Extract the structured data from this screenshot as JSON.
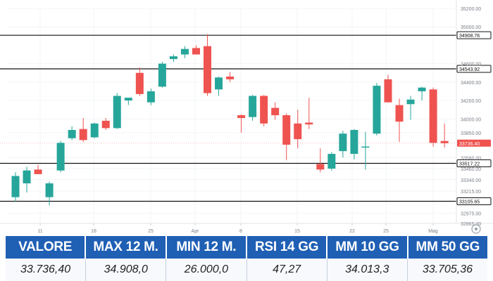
{
  "chart_data": {
    "type": "candlestick",
    "x_tick_labels": [
      "11",
      "18",
      "25",
      "Apr",
      "8",
      "15",
      "22",
      "25",
      "Mag"
    ],
    "y_tick_labels": [
      "35200.00",
      "35000.00",
      "34600.00",
      "34400.00",
      "34200.00",
      "34000.00",
      "33850.00",
      "33580.00",
      "33460.00",
      "33340.00",
      "33215.00",
      "32975.00",
      "32865.00"
    ],
    "ylim": [
      32865,
      35200
    ],
    "colors": {
      "up": "#26a69a",
      "down": "#ef5350",
      "price_tag": "#ef5350"
    },
    "horizontal_levels": [
      {
        "value": 34908.76,
        "label": "34908.76"
      },
      {
        "value": 34543.92,
        "label": "34543.92"
      },
      {
        "value": 33517.22,
        "label": "33517.22"
      },
      {
        "value": 33105.65,
        "label": "33105.65"
      }
    ],
    "last_price": {
      "value": 33736.4,
      "label": "33736.40"
    },
    "candles": [
      {
        "o": 33150,
        "h": 33420,
        "l": 33100,
        "c": 33380
      },
      {
        "o": 33300,
        "h": 33480,
        "l": 33200,
        "c": 33440
      },
      {
        "o": 33450,
        "h": 33500,
        "l": 33400,
        "c": 33400
      },
      {
        "o": 33150,
        "h": 33320,
        "l": 33060,
        "c": 33300
      },
      {
        "o": 33440,
        "h": 33760,
        "l": 33420,
        "c": 33740
      },
      {
        "o": 33790,
        "h": 33920,
        "l": 33770,
        "c": 33880
      },
      {
        "o": 33890,
        "h": 34010,
        "l": 33750,
        "c": 33770
      },
      {
        "o": 33800,
        "h": 33960,
        "l": 33790,
        "c": 33950
      },
      {
        "o": 33980,
        "h": 34010,
        "l": 33880,
        "c": 33900
      },
      {
        "o": 33900,
        "h": 34280,
        "l": 33890,
        "c": 34250
      },
      {
        "o": 34200,
        "h": 34230,
        "l": 34150,
        "c": 34230
      },
      {
        "o": 34500,
        "h": 34560,
        "l": 34250,
        "c": 34270
      },
      {
        "o": 34180,
        "h": 34330,
        "l": 34150,
        "c": 34300
      },
      {
        "o": 34350,
        "h": 34620,
        "l": 34340,
        "c": 34600
      },
      {
        "o": 34650,
        "h": 34700,
        "l": 34620,
        "c": 34680
      },
      {
        "o": 34700,
        "h": 34790,
        "l": 34660,
        "c": 34760
      },
      {
        "o": 34770,
        "h": 34800,
        "l": 34700,
        "c": 34700
      },
      {
        "o": 34790,
        "h": 34920,
        "l": 34250,
        "c": 34280
      },
      {
        "o": 34320,
        "h": 34460,
        "l": 34250,
        "c": 34450
      },
      {
        "o": 34460,
        "h": 34510,
        "l": 34400,
        "c": 34430
      },
      {
        "o": 34040,
        "h": 34050,
        "l": 33850,
        "c": 34010
      },
      {
        "o": 34020,
        "h": 34260,
        "l": 33980,
        "c": 34250
      },
      {
        "o": 34250,
        "h": 34260,
        "l": 33920,
        "c": 33950
      },
      {
        "o": 34120,
        "h": 34180,
        "l": 33990,
        "c": 34040
      },
      {
        "o": 34040,
        "h": 34060,
        "l": 33550,
        "c": 33720
      },
      {
        "o": 33950,
        "h": 34100,
        "l": 33680,
        "c": 33780
      },
      {
        "o": 33960,
        "h": 34230,
        "l": 33890,
        "c": 33940
      },
      {
        "o": 33510,
        "h": 33680,
        "l": 33420,
        "c": 33450
      },
      {
        "o": 33460,
        "h": 33640,
        "l": 33440,
        "c": 33620
      },
      {
        "o": 33650,
        "h": 33870,
        "l": 33580,
        "c": 33840
      },
      {
        "o": 33620,
        "h": 33890,
        "l": 33560,
        "c": 33880
      },
      {
        "o": 33690,
        "h": 33860,
        "l": 33450,
        "c": 33700
      },
      {
        "o": 33840,
        "h": 34390,
        "l": 33820,
        "c": 34360
      },
      {
        "o": 34430,
        "h": 34480,
        "l": 34180,
        "c": 34180
      },
      {
        "o": 34150,
        "h": 34220,
        "l": 33750,
        "c": 33970
      },
      {
        "o": 34160,
        "h": 34250,
        "l": 33990,
        "c": 34210
      },
      {
        "o": 34300,
        "h": 34350,
        "l": 34200,
        "c": 34340
      },
      {
        "o": 34320,
        "h": 34340,
        "l": 33700,
        "c": 33740
      },
      {
        "o": 33760,
        "h": 33950,
        "l": 33690,
        "c": 33736
      }
    ]
  },
  "stats": {
    "headers": [
      "VALORE",
      "MAX 12 M.",
      "MIN 12 M.",
      "RSI 14 GG",
      "MM 10 GG",
      "MM 50 GG"
    ],
    "values": [
      "33.736,40",
      "34.908,0",
      "26.000,0",
      "47,27",
      "34.013,3",
      "33.705,36"
    ]
  },
  "controls": {
    "scale_icon": "gear-icon"
  }
}
